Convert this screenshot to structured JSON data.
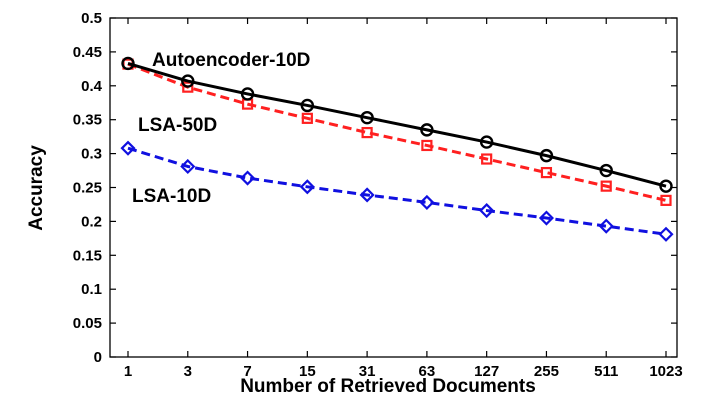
{
  "chart_data": {
    "type": "line",
    "xlabel": "Number of Retrieved Documents",
    "ylabel": "Accuracy",
    "categories": [
      "1",
      "3",
      "7",
      "15",
      "31",
      "63",
      "127",
      "255",
      "511",
      "1023"
    ],
    "ylim": [
      0,
      0.5
    ],
    "yticks": [
      "0",
      "0.05",
      "0.1",
      "0.15",
      "0.2",
      "0.25",
      "0.3",
      "0.35",
      "0.4",
      "0.45",
      "0.5"
    ],
    "grid": false,
    "series": [
      {
        "name": "Autoencoder-10D",
        "color": "#000000",
        "marker": "circle",
        "dash": "solid",
        "values": [
          0.433,
          0.407,
          0.388,
          0.371,
          0.353,
          0.335,
          0.317,
          0.297,
          0.275,
          0.252
        ]
      },
      {
        "name": "LSA-50D",
        "color": "#ff2020",
        "marker": "square",
        "dash": "dashed",
        "values": [
          0.432,
          0.398,
          0.373,
          0.352,
          0.331,
          0.312,
          0.292,
          0.272,
          0.252,
          0.231
        ]
      },
      {
        "name": "LSA-10D",
        "color": "#1010e0",
        "marker": "diamond",
        "dash": "dashed",
        "values": [
          0.308,
          0.281,
          0.264,
          0.251,
          0.239,
          0.228,
          0.216,
          0.205,
          0.193,
          0.181
        ]
      }
    ]
  }
}
